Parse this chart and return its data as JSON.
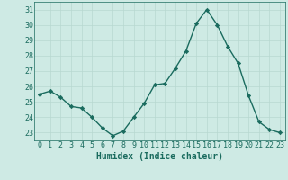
{
  "x": [
    0,
    1,
    2,
    3,
    4,
    5,
    6,
    7,
    8,
    9,
    10,
    11,
    12,
    13,
    14,
    15,
    16,
    17,
    18,
    19,
    20,
    21,
    22,
    23
  ],
  "y": [
    25.5,
    25.7,
    25.3,
    24.7,
    24.6,
    24.0,
    23.3,
    22.8,
    23.1,
    24.0,
    24.9,
    26.1,
    26.2,
    27.2,
    28.3,
    30.1,
    31.0,
    30.0,
    28.6,
    27.5,
    25.4,
    23.7,
    23.2,
    23.0
  ],
  "line_color": "#1a6b5e",
  "marker": "D",
  "marker_size": 2.2,
  "line_width": 1.0,
  "bg_color": "#ceeae4",
  "grid_color": "#b8d8d0",
  "xlabel": "Humidex (Indice chaleur)",
  "xlabel_fontsize": 7,
  "tick_fontsize": 6,
  "ylim": [
    22.5,
    31.5
  ],
  "yticks": [
    23,
    24,
    25,
    26,
    27,
    28,
    29,
    30,
    31
  ],
  "xlim": [
    -0.5,
    23.5
  ],
  "xticks": [
    0,
    1,
    2,
    3,
    4,
    5,
    6,
    7,
    8,
    9,
    10,
    11,
    12,
    13,
    14,
    15,
    16,
    17,
    18,
    19,
    20,
    21,
    22,
    23
  ]
}
